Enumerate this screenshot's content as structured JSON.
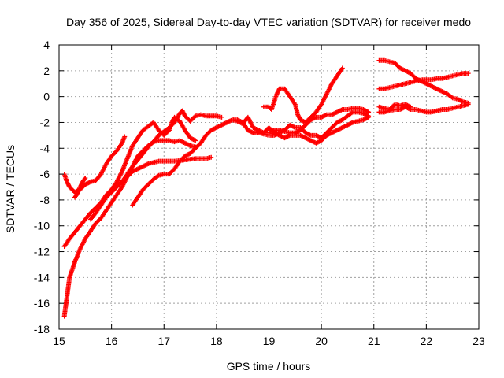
{
  "chart_data": {
    "type": "scatter",
    "title": "Day 356 of 2025, Sidereal Day-to-day VTEC variation (SDTVAR) for receiver medo",
    "xlabel": "GPS time / hours",
    "ylabel": "SDTVAR / TECUs",
    "xlim": [
      15,
      23
    ],
    "ylim": [
      -18,
      4
    ],
    "xticks": [
      15,
      16,
      17,
      18,
      19,
      20,
      21,
      22,
      23
    ],
    "yticks": [
      -18,
      -16,
      -14,
      -12,
      -10,
      -8,
      -6,
      -4,
      -2,
      0,
      2,
      4
    ],
    "grid": true,
    "marker": "+",
    "color": "#ff0000",
    "series": [
      {
        "values": [
          [
            15.1,
            -6.0
          ],
          [
            15.15,
            -6.6
          ],
          [
            15.2,
            -7.0
          ],
          [
            15.3,
            -7.4
          ],
          [
            15.4,
            -7.2
          ],
          [
            15.5,
            -6.8
          ],
          [
            15.6,
            -6.6
          ],
          [
            15.7,
            -6.5
          ],
          [
            15.8,
            -6.0
          ],
          [
            15.9,
            -5.2
          ],
          [
            16.0,
            -4.6
          ],
          [
            16.1,
            -4.2
          ],
          [
            16.2,
            -3.6
          ],
          [
            16.25,
            -3.1
          ]
        ]
      },
      {
        "values": [
          [
            15.5,
            -6.3
          ],
          [
            15.45,
            -6.6
          ],
          [
            15.4,
            -7.0
          ],
          [
            15.35,
            -7.5
          ],
          [
            15.3,
            -7.8
          ]
        ]
      },
      {
        "values": [
          [
            15.1,
            -11.6
          ],
          [
            15.2,
            -11.0
          ],
          [
            15.3,
            -10.5
          ],
          [
            15.4,
            -10.0
          ],
          [
            15.5,
            -9.5
          ],
          [
            15.6,
            -9.0
          ],
          [
            15.7,
            -8.6
          ],
          [
            15.8,
            -8.2
          ],
          [
            15.9,
            -7.6
          ],
          [
            16.0,
            -7.2
          ],
          [
            16.1,
            -6.8
          ],
          [
            16.2,
            -6.6
          ],
          [
            16.3,
            -6.2
          ],
          [
            16.4,
            -5.8
          ],
          [
            16.5,
            -5.6
          ],
          [
            16.6,
            -5.4
          ],
          [
            16.7,
            -5.2
          ],
          [
            16.8,
            -5.1
          ],
          [
            16.9,
            -5.0
          ],
          [
            17.0,
            -5.0
          ],
          [
            17.2,
            -5.0
          ],
          [
            17.4,
            -4.9
          ],
          [
            17.6,
            -4.8
          ],
          [
            17.8,
            -4.8
          ],
          [
            17.9,
            -4.7
          ]
        ]
      },
      {
        "values": [
          [
            15.1,
            -17.0
          ],
          [
            15.15,
            -15.5
          ],
          [
            15.2,
            -14.0
          ],
          [
            15.3,
            -12.8
          ],
          [
            15.4,
            -11.8
          ],
          [
            15.5,
            -11.0
          ],
          [
            15.6,
            -10.4
          ],
          [
            15.7,
            -9.8
          ],
          [
            15.8,
            -9.4
          ],
          [
            15.9,
            -8.8
          ],
          [
            16.0,
            -8.2
          ],
          [
            16.1,
            -7.6
          ],
          [
            16.2,
            -7.0
          ],
          [
            16.3,
            -6.2
          ],
          [
            16.4,
            -5.4
          ],
          [
            16.5,
            -4.6
          ],
          [
            16.6,
            -4.2
          ],
          [
            16.7,
            -3.8
          ],
          [
            16.8,
            -3.5
          ],
          [
            16.9,
            -3.4
          ],
          [
            17.0,
            -3.4
          ],
          [
            17.1,
            -3.4
          ],
          [
            17.2,
            -3.5
          ],
          [
            17.3,
            -3.4
          ],
          [
            17.4,
            -3.6
          ],
          [
            17.5,
            -3.8
          ],
          [
            17.6,
            -3.9
          ]
        ]
      },
      {
        "values": [
          [
            15.6,
            -9.5
          ],
          [
            15.7,
            -9.0
          ],
          [
            15.8,
            -8.4
          ],
          [
            15.9,
            -7.8
          ],
          [
            16.0,
            -7.4
          ],
          [
            16.1,
            -7.0
          ],
          [
            16.2,
            -6.6
          ],
          [
            16.3,
            -6.0
          ],
          [
            16.4,
            -5.4
          ],
          [
            16.5,
            -4.9
          ],
          [
            16.6,
            -4.4
          ],
          [
            16.7,
            -3.9
          ],
          [
            16.8,
            -3.5
          ],
          [
            16.9,
            -3.0
          ],
          [
            17.0,
            -2.7
          ],
          [
            17.1,
            -2.4
          ],
          [
            17.2,
            -2.0
          ],
          [
            17.3,
            -1.3
          ],
          [
            17.35,
            -1.1
          ],
          [
            17.4,
            -1.5
          ],
          [
            17.5,
            -1.9
          ],
          [
            17.6,
            -1.5
          ],
          [
            17.7,
            -1.4
          ],
          [
            17.8,
            -1.5
          ],
          [
            17.9,
            -1.5
          ],
          [
            18.0,
            -1.5
          ],
          [
            18.1,
            -1.6
          ]
        ]
      },
      {
        "values": [
          [
            16.0,
            -7.2
          ],
          [
            16.1,
            -6.6
          ],
          [
            16.2,
            -5.8
          ],
          [
            16.3,
            -4.8
          ],
          [
            16.4,
            -3.8
          ],
          [
            16.5,
            -3.2
          ],
          [
            16.6,
            -2.6
          ],
          [
            16.7,
            -2.3
          ],
          [
            16.8,
            -2.0
          ],
          [
            16.9,
            -2.6
          ],
          [
            17.0,
            -3.0
          ],
          [
            17.1,
            -2.6
          ],
          [
            17.15,
            -2.0
          ],
          [
            17.2,
            -1.6
          ],
          [
            17.3,
            -1.9
          ],
          [
            17.4,
            -2.6
          ],
          [
            17.5,
            -3.2
          ],
          [
            17.6,
            -3.4
          ]
        ]
      },
      {
        "values": [
          [
            16.4,
            -8.4
          ],
          [
            16.5,
            -7.8
          ],
          [
            16.6,
            -7.2
          ],
          [
            16.7,
            -6.8
          ],
          [
            16.8,
            -6.4
          ],
          [
            16.9,
            -6.1
          ],
          [
            17.0,
            -6.0
          ],
          [
            17.1,
            -6.0
          ],
          [
            17.2,
            -5.6
          ],
          [
            17.3,
            -5.0
          ],
          [
            17.4,
            -4.6
          ],
          [
            17.5,
            -4.4
          ],
          [
            17.6,
            -4.0
          ],
          [
            17.7,
            -3.6
          ],
          [
            17.8,
            -3.0
          ],
          [
            17.9,
            -2.6
          ],
          [
            18.0,
            -2.4
          ],
          [
            18.1,
            -2.2
          ],
          [
            18.2,
            -2.0
          ],
          [
            18.3,
            -1.8
          ],
          [
            18.4,
            -1.8
          ],
          [
            18.5,
            -2.0
          ],
          [
            18.6,
            -2.6
          ],
          [
            18.7,
            -2.8
          ],
          [
            18.8,
            -2.8
          ],
          [
            18.9,
            -2.9
          ],
          [
            19.0,
            -3.0
          ],
          [
            19.1,
            -3.0
          ],
          [
            19.2,
            -2.8
          ],
          [
            19.3,
            -2.6
          ],
          [
            19.4,
            -2.2
          ],
          [
            19.5,
            -2.4
          ],
          [
            19.6,
            -2.4
          ],
          [
            19.7,
            -2.8
          ],
          [
            19.8,
            -3.0
          ],
          [
            19.9,
            -3.0
          ],
          [
            20.0,
            -3.2
          ],
          [
            20.1,
            -2.8
          ],
          [
            20.2,
            -2.4
          ],
          [
            20.3,
            -2.0
          ],
          [
            20.4,
            -1.8
          ],
          [
            20.5,
            -1.5
          ],
          [
            20.6,
            -1.2
          ],
          [
            20.7,
            -1.2
          ],
          [
            20.8,
            -1.3
          ],
          [
            20.9,
            -1.5
          ]
        ]
      },
      {
        "values": [
          [
            18.3,
            -1.8
          ],
          [
            18.4,
            -1.9
          ],
          [
            18.5,
            -2.1
          ],
          [
            18.6,
            -1.6
          ],
          [
            18.7,
            -2.4
          ],
          [
            18.8,
            -2.6
          ],
          [
            18.9,
            -2.8
          ],
          [
            19.0,
            -2.4
          ],
          [
            19.1,
            -2.8
          ],
          [
            19.2,
            -3.0
          ],
          [
            19.3,
            -3.2
          ],
          [
            19.4,
            -3.0
          ],
          [
            19.5,
            -3.0
          ],
          [
            19.6,
            -3.0
          ],
          [
            19.7,
            -3.2
          ],
          [
            19.8,
            -3.4
          ],
          [
            19.9,
            -3.6
          ],
          [
            20.0,
            -3.4
          ],
          [
            20.1,
            -3.0
          ],
          [
            20.2,
            -2.8
          ],
          [
            20.3,
            -2.6
          ],
          [
            20.4,
            -2.4
          ],
          [
            20.5,
            -2.2
          ],
          [
            20.6,
            -2.0
          ],
          [
            20.7,
            -1.9
          ],
          [
            20.8,
            -1.8
          ],
          [
            20.9,
            -1.6
          ]
        ]
      },
      {
        "values": [
          [
            18.9,
            -0.8
          ],
          [
            19.0,
            -0.8
          ],
          [
            19.05,
            -1.0
          ],
          [
            19.1,
            -0.4
          ],
          [
            19.15,
            0.2
          ],
          [
            19.2,
            0.6
          ],
          [
            19.3,
            0.6
          ],
          [
            19.4,
            0.0
          ],
          [
            19.5,
            -0.6
          ],
          [
            19.55,
            -1.4
          ],
          [
            19.6,
            -1.8
          ],
          [
            19.7,
            -2.0
          ],
          [
            19.8,
            -1.6
          ],
          [
            19.9,
            -1.2
          ],
          [
            20.0,
            -0.6
          ],
          [
            20.1,
            0.2
          ],
          [
            20.2,
            1.0
          ],
          [
            20.3,
            1.6
          ],
          [
            20.4,
            2.2
          ]
        ]
      },
      {
        "values": [
          [
            19.0,
            -2.8
          ],
          [
            19.1,
            -2.6
          ],
          [
            19.2,
            -2.6
          ],
          [
            19.3,
            -2.7
          ],
          [
            19.4,
            -2.8
          ],
          [
            19.5,
            -2.8
          ],
          [
            19.6,
            -2.6
          ],
          [
            19.7,
            -2.2
          ],
          [
            19.8,
            -1.8
          ],
          [
            19.9,
            -1.6
          ],
          [
            20.0,
            -1.6
          ],
          [
            20.1,
            -1.4
          ],
          [
            20.2,
            -1.4
          ],
          [
            20.3,
            -1.2
          ],
          [
            20.4,
            -1.0
          ],
          [
            20.5,
            -1.0
          ],
          [
            20.6,
            -0.9
          ],
          [
            20.7,
            -0.9
          ],
          [
            20.8,
            -1.0
          ],
          [
            20.9,
            -1.2
          ]
        ]
      },
      {
        "values": [
          [
            21.1,
            2.8
          ],
          [
            21.2,
            2.8
          ],
          [
            21.3,
            2.7
          ],
          [
            21.4,
            2.6
          ],
          [
            21.5,
            2.2
          ],
          [
            21.6,
            2.0
          ],
          [
            21.7,
            1.8
          ],
          [
            21.8,
            1.4
          ],
          [
            21.9,
            1.2
          ],
          [
            22.0,
            1.0
          ],
          [
            22.1,
            0.8
          ],
          [
            22.2,
            0.6
          ],
          [
            22.3,
            0.4
          ],
          [
            22.4,
            0.2
          ],
          [
            22.5,
            -0.1
          ],
          [
            22.6,
            -0.2
          ],
          [
            22.7,
            -0.4
          ],
          [
            22.8,
            -0.5
          ]
        ]
      },
      {
        "values": [
          [
            21.1,
            0.6
          ],
          [
            21.2,
            0.6
          ],
          [
            21.3,
            0.7
          ],
          [
            21.4,
            0.8
          ],
          [
            21.5,
            0.9
          ],
          [
            21.6,
            1.0
          ],
          [
            21.7,
            1.1
          ],
          [
            21.8,
            1.2
          ],
          [
            21.9,
            1.3
          ],
          [
            22.0,
            1.3
          ],
          [
            22.1,
            1.3
          ],
          [
            22.2,
            1.4
          ],
          [
            22.3,
            1.4
          ],
          [
            22.4,
            1.5
          ],
          [
            22.5,
            1.6
          ],
          [
            22.6,
            1.7
          ],
          [
            22.7,
            1.8
          ],
          [
            22.8,
            1.8
          ]
        ]
      },
      {
        "values": [
          [
            21.1,
            -1.2
          ],
          [
            21.2,
            -1.2
          ],
          [
            21.3,
            -1.1
          ],
          [
            21.4,
            -1.0
          ],
          [
            21.5,
            -1.0
          ],
          [
            21.6,
            -0.8
          ],
          [
            21.7,
            -1.0
          ],
          [
            21.8,
            -1.0
          ],
          [
            21.9,
            -1.1
          ],
          [
            22.0,
            -1.2
          ],
          [
            22.1,
            -1.2
          ],
          [
            22.2,
            -1.1
          ],
          [
            22.3,
            -1.0
          ],
          [
            22.4,
            -1.0
          ],
          [
            22.5,
            -0.9
          ],
          [
            22.6,
            -0.8
          ],
          [
            22.7,
            -0.7
          ],
          [
            22.8,
            -0.6
          ]
        ]
      },
      {
        "values": [
          [
            21.1,
            -0.8
          ],
          [
            21.2,
            -0.9
          ],
          [
            21.3,
            -1.0
          ],
          [
            21.4,
            -0.6
          ],
          [
            21.5,
            -0.7
          ],
          [
            21.6,
            -0.6
          ],
          [
            21.7,
            -0.8
          ]
        ]
      }
    ]
  }
}
